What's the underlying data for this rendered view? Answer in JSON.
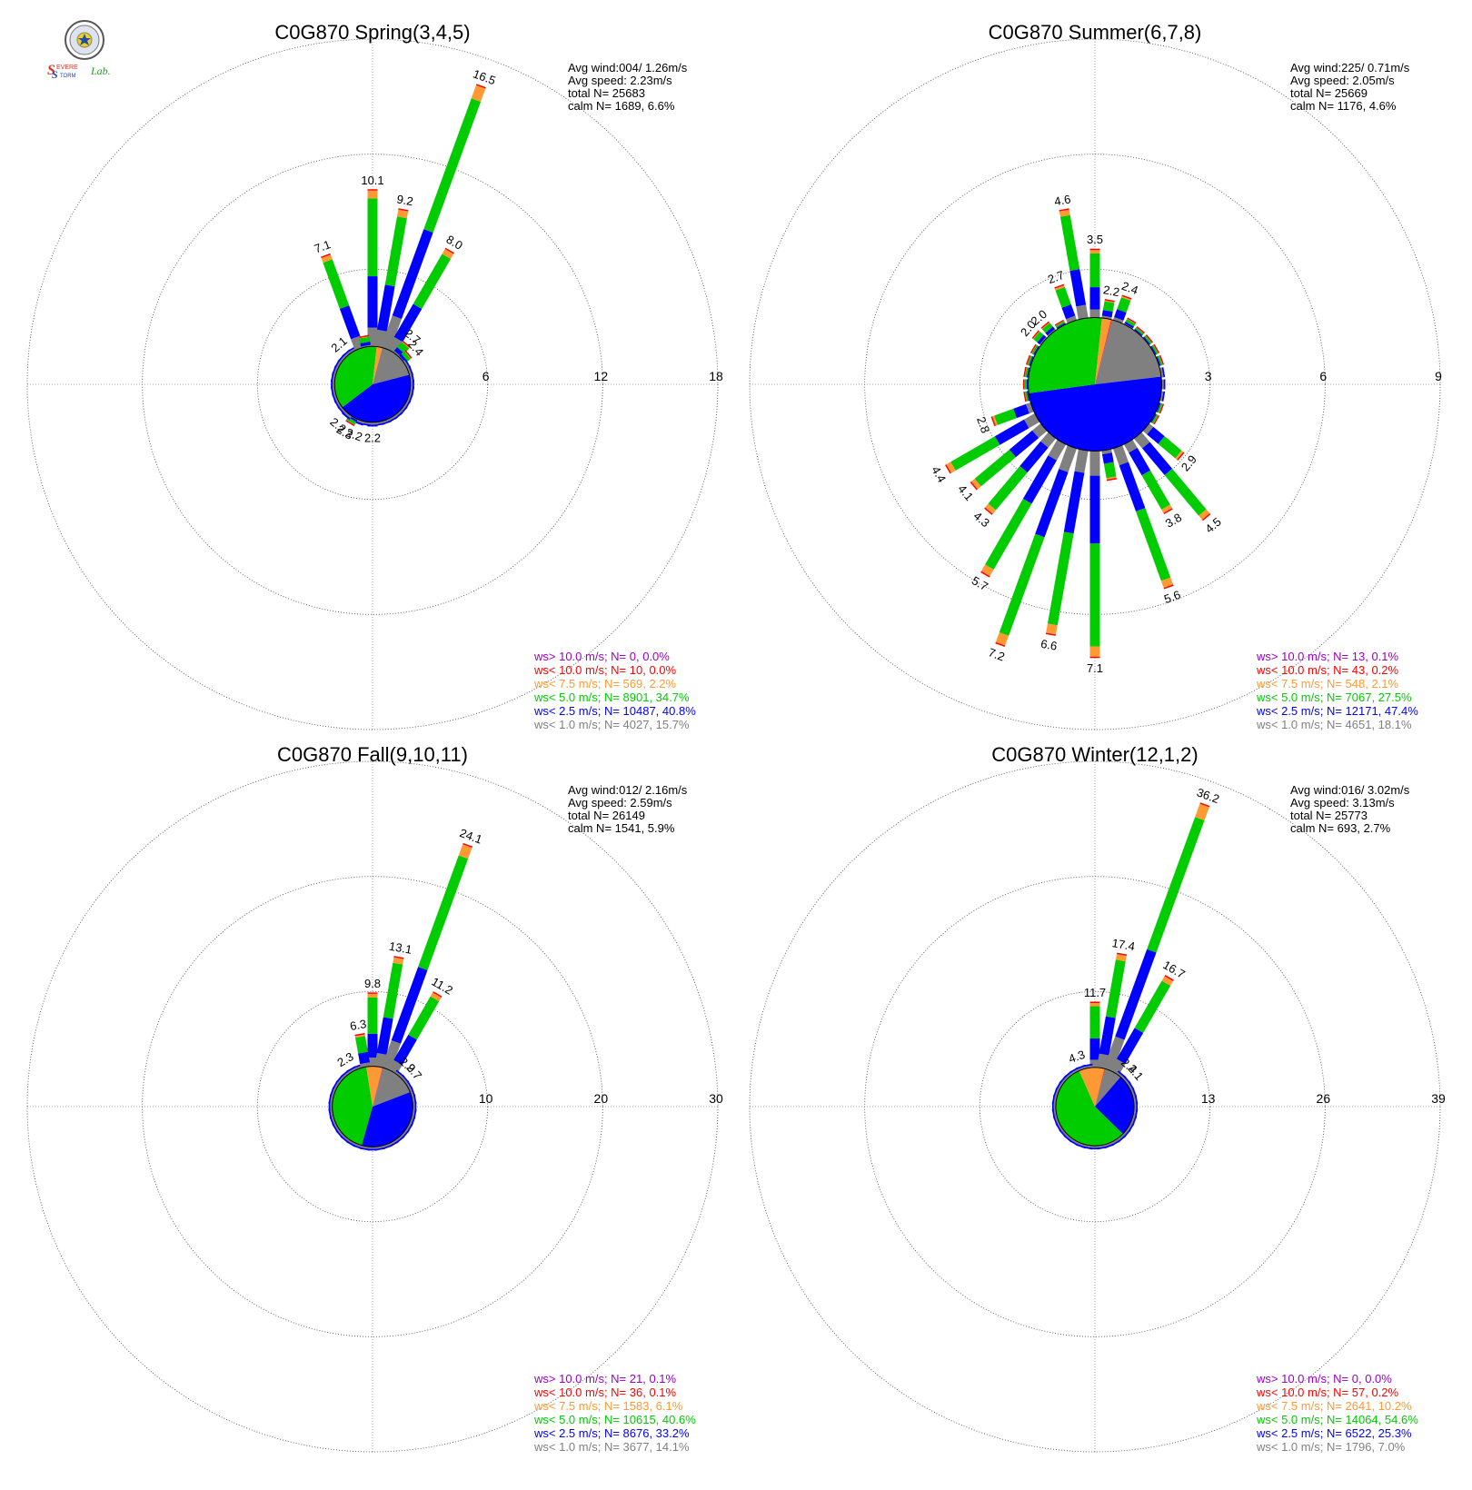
{
  "logo": {
    "text_s1": "S",
    "text_evere": "EVERE",
    "text_s2": "S",
    "text_torm": "TORM",
    "text_lab": "Lab.",
    "emblem": "university-seal-icon"
  },
  "colors": {
    "gt10": "#9900cc",
    "lt10": "#ff0000",
    "lt75": "#ff9933",
    "lt50": "#00cc00",
    "lt25": "#0000ff",
    "lt10ms": "#808080",
    "calm": "#ffffff"
  },
  "chart_data": [
    {
      "type": "wind-rose",
      "title": "C0G870 Spring(3,4,5)",
      "rmax": 18,
      "rings": [
        6,
        12,
        18
      ],
      "ring_labels": [
        "6",
        "12",
        "18"
      ],
      "stats": [
        "Avg wind:004/ 1.26m/s",
        "Avg speed: 2.23m/s",
        "total N=       25683",
        "calm N=   1689,   6.6%"
      ],
      "legend": [
        {
          "text": "ws> 10.0 m/s; N=      0,  0.0%",
          "cls": "gt10"
        },
        {
          "text": "ws< 10.0 m/s; N=     10,  0.0%",
          "cls": "lt10"
        },
        {
          "text": "ws<  7.5 m/s; N=    569,  2.2%",
          "cls": "lt75"
        },
        {
          "text": "ws<  5.0 m/s; N=  8901, 34.7%",
          "cls": "lt50"
        },
        {
          "text": "ws<  2.5 m/s; N= 10487, 40.8%",
          "cls": "lt25"
        },
        {
          "text": "ws<  1.0 m/s; N=  4027, 15.7%",
          "cls": "lt10ms"
        }
      ],
      "directions": [
        0,
        10,
        20,
        30,
        40,
        50,
        60,
        70,
        80,
        90,
        100,
        110,
        120,
        130,
        140,
        150,
        160,
        170,
        180,
        190,
        200,
        210,
        220,
        230,
        240,
        250,
        260,
        270,
        280,
        290,
        300,
        310,
        320,
        330,
        340,
        350
      ],
      "totals": [
        10.1,
        9.2,
        16.5,
        8.0,
        2.7,
        2.4,
        1.8,
        1.4,
        1.1,
        0.8,
        1.0,
        1.2,
        1.3,
        1.3,
        1.5,
        1.7,
        1.8,
        2.0,
        2.2,
        1.9,
        2.2,
        2.3,
        2.2,
        2.1,
        2.0,
        1.9,
        1.6,
        1.3,
        1.2,
        1.3,
        1.5,
        1.7,
        2.1,
        1.8,
        7.1,
        2.5
      ],
      "labels": [
        {
          "dir": 0,
          "text": "10.1"
        },
        {
          "dir": 10,
          "text": "9.2"
        },
        {
          "dir": 20,
          "text": "16.5"
        },
        {
          "dir": 30,
          "text": "8.0"
        },
        {
          "dir": 40,
          "text": "2.7"
        },
        {
          "dir": 50,
          "text": "2.4"
        },
        {
          "dir": 180,
          "text": "2.2"
        },
        {
          "dir": 200,
          "text": "2.2"
        },
        {
          "dir": 210,
          "text": "2.3"
        },
        {
          "dir": 220,
          "text": "2.2"
        },
        {
          "dir": 320,
          "text": "2.1"
        },
        {
          "dir": 340,
          "text": "7.1"
        }
      ],
      "inner": [
        4027,
        10487,
        8901,
        569,
        10,
        0
      ],
      "inner_fraction": 0.33,
      "band_edges": [
        0,
        0.7,
        0.25,
        0.05
      ]
    },
    {
      "type": "wind-rose",
      "title": "C0G870 Summer(6,7,8)",
      "rmax": 9,
      "rings": [
        3,
        6,
        9
      ],
      "ring_labels": [
        "3",
        "6",
        "9"
      ],
      "stats": [
        "Avg wind:225/ 0.71m/s",
        "Avg speed: 2.05m/s",
        "total N=       25669",
        "calm N=   1176,   4.6%"
      ],
      "legend": [
        {
          "text": "ws> 10.0 m/s; N=     13,  0.1%",
          "cls": "gt10"
        },
        {
          "text": "ws< 10.0 m/s; N=     43,  0.2%",
          "cls": "lt10"
        },
        {
          "text": "ws<  7.5 m/s; N=    548,  2.1%",
          "cls": "lt75"
        },
        {
          "text": "ws<  5.0 m/s; N=  7067, 27.5%",
          "cls": "lt50"
        },
        {
          "text": "ws<  2.5 m/s; N= 12171, 47.4%",
          "cls": "lt25"
        },
        {
          "text": "ws<  1.0 m/s; N=  4651, 18.1%",
          "cls": "lt10ms"
        }
      ],
      "directions": [
        0,
        10,
        20,
        30,
        40,
        50,
        60,
        70,
        80,
        90,
        100,
        110,
        120,
        130,
        140,
        150,
        160,
        170,
        180,
        190,
        200,
        210,
        220,
        230,
        240,
        250,
        260,
        270,
        280,
        290,
        300,
        310,
        320,
        330,
        340,
        350
      ],
      "totals": [
        3.5,
        2.2,
        2.4,
        1.9,
        1.6,
        1.4,
        1.3,
        1.2,
        1.1,
        1.0,
        1.1,
        1.3,
        1.8,
        2.9,
        4.5,
        3.8,
        5.6,
        2.5,
        7.1,
        6.6,
        7.2,
        5.7,
        4.3,
        4.1,
        4.4,
        2.8,
        1.6,
        1.3,
        1.2,
        1.3,
        1.5,
        2.0,
        2.0,
        1.8,
        2.7,
        4.6
      ],
      "labels": [
        {
          "dir": 0,
          "text": "3.5"
        },
        {
          "dir": 10,
          "text": "2.2"
        },
        {
          "dir": 20,
          "text": "2.4"
        },
        {
          "dir": 130,
          "text": "2.9"
        },
        {
          "dir": 140,
          "text": "4.5"
        },
        {
          "dir": 150,
          "text": "3.8"
        },
        {
          "dir": 160,
          "text": "5.6"
        },
        {
          "dir": 180,
          "text": "7.1"
        },
        {
          "dir": 190,
          "text": "6.6"
        },
        {
          "dir": 200,
          "text": "7.2"
        },
        {
          "dir": 210,
          "text": "5.7"
        },
        {
          "dir": 220,
          "text": "4.3"
        },
        {
          "dir": 230,
          "text": "4.1"
        },
        {
          "dir": 240,
          "text": "4.4"
        },
        {
          "dir": 250,
          "text": "2.8"
        },
        {
          "dir": 310,
          "text": "2.0"
        },
        {
          "dir": 320,
          "text": "2.0"
        },
        {
          "dir": 340,
          "text": "2.7"
        },
        {
          "dir": 350,
          "text": "4.6"
        }
      ],
      "inner": [
        4651,
        12171,
        7067,
        548,
        43,
        13
      ],
      "inner_fraction": 0.58,
      "band_edges": [
        0,
        0.7,
        0.28,
        0.04
      ]
    },
    {
      "type": "wind-rose",
      "title": "C0G870 Fall(9,10,11)",
      "rmax": 30,
      "rings": [
        10,
        20,
        30
      ],
      "ring_labels": [
        "10",
        "20",
        "30"
      ],
      "stats": [
        "Avg wind:012/ 2.16m/s",
        "Avg speed: 2.59m/s",
        "total N=       26149",
        "calm N=   1541,   5.9%"
      ],
      "legend": [
        {
          "text": "ws> 10.0 m/s; N=     21,  0.1%",
          "cls": "gt10"
        },
        {
          "text": "ws< 10.0 m/s; N=     36,  0.1%",
          "cls": "lt10"
        },
        {
          "text": "ws<  7.5 m/s; N=  1583,  6.1%",
          "cls": "lt75"
        },
        {
          "text": "ws<  5.0 m/s; N= 10615, 40.6%",
          "cls": "lt50"
        },
        {
          "text": "ws<  2.5 m/s; N=  8676, 33.2%",
          "cls": "lt25"
        },
        {
          "text": "ws<  1.0 m/s; N=  3677, 14.1%",
          "cls": "lt10ms"
        }
      ],
      "directions": [
        0,
        10,
        20,
        30,
        40,
        50,
        60,
        70,
        80,
        90,
        100,
        110,
        120,
        130,
        140,
        150,
        160,
        170,
        180,
        190,
        200,
        210,
        220,
        230,
        240,
        250,
        260,
        270,
        280,
        290,
        300,
        310,
        320,
        330,
        340,
        350
      ],
      "totals": [
        9.8,
        13.1,
        24.1,
        11.2,
        2.9,
        2.7,
        1.7,
        1.3,
        1.1,
        0.9,
        1.0,
        1.2,
        1.4,
        1.7,
        2.0,
        2.2,
        2.4,
        2.4,
        2.5,
        2.4,
        2.3,
        2.1,
        2.0,
        1.9,
        1.7,
        1.5,
        1.4,
        1.2,
        1.1,
        1.1,
        1.3,
        1.5,
        1.7,
        2.3,
        2.6,
        6.3
      ],
      "labels": [
        {
          "dir": 0,
          "text": "9.8"
        },
        {
          "dir": 10,
          "text": "13.1"
        },
        {
          "dir": 20,
          "text": "24.1"
        },
        {
          "dir": 30,
          "text": "11.2"
        },
        {
          "dir": 40,
          "text": "2.9"
        },
        {
          "dir": 50,
          "text": "2.7"
        },
        {
          "dir": 330,
          "text": "2.3"
        },
        {
          "dir": 350,
          "text": "6.3"
        }
      ],
      "inner": [
        3677,
        8676,
        10615,
        1583,
        36,
        21
      ],
      "inner_fraction": 0.35,
      "band_edges": [
        0,
        0.55,
        0.35,
        0.1
      ]
    },
    {
      "type": "wind-rose",
      "title": "C0G870 Winter(12,1,2)",
      "rmax": 39,
      "rings": [
        13,
        26,
        39
      ],
      "ring_labels": [
        "13",
        "26",
        "39"
      ],
      "stats": [
        "Avg wind:016/ 3.02m/s",
        "Avg speed: 3.13m/s",
        "total N=       25773",
        "calm N=    693,   2.7%"
      ],
      "legend": [
        {
          "text": "ws> 10.0 m/s; N=      0,  0.0%",
          "cls": "gt10"
        },
        {
          "text": "ws< 10.0 m/s; N=     57,  0.2%",
          "cls": "lt10"
        },
        {
          "text": "ws<  7.5 m/s; N=  2641, 10.2%",
          "cls": "lt75"
        },
        {
          "text": "ws<  5.0 m/s; N= 14064, 54.6%",
          "cls": "lt50"
        },
        {
          "text": "ws<  2.5 m/s; N=  6522, 25.3%",
          "cls": "lt25"
        },
        {
          "text": "ws<  1.0 m/s; N=  1796,  7.0%",
          "cls": "lt10ms"
        }
      ],
      "directions": [
        0,
        10,
        20,
        30,
        40,
        50,
        60,
        70,
        80,
        90,
        100,
        110,
        120,
        130,
        140,
        150,
        160,
        170,
        180,
        190,
        200,
        210,
        220,
        230,
        240,
        250,
        260,
        270,
        280,
        290,
        300,
        310,
        320,
        330,
        340,
        350
      ],
      "totals": [
        11.7,
        17.4,
        36.2,
        16.7,
        2.4,
        2.1,
        1.3,
        0.9,
        0.7,
        0.6,
        0.6,
        0.6,
        0.7,
        0.7,
        0.7,
        0.8,
        0.8,
        0.8,
        0.8,
        0.8,
        0.7,
        0.7,
        0.7,
        0.7,
        0.6,
        0.6,
        0.6,
        0.6,
        0.6,
        0.7,
        0.8,
        1.0,
        1.3,
        1.6,
        4.3,
        1.9
      ],
      "labels": [
        {
          "dir": 0,
          "text": "11.7"
        },
        {
          "dir": 10,
          "text": "17.4"
        },
        {
          "dir": 20,
          "text": "36.2"
        },
        {
          "dir": 30,
          "text": "16.7"
        },
        {
          "dir": 40,
          "text": "2.4"
        },
        {
          "dir": 50,
          "text": "2.1"
        },
        {
          "dir": 340,
          "text": "4.3"
        }
      ],
      "inner": [
        1796,
        6522,
        14064,
        2641,
        57,
        0
      ],
      "inner_fraction": 0.34,
      "band_edges": [
        0,
        0.45,
        0.45,
        0.1
      ]
    }
  ]
}
